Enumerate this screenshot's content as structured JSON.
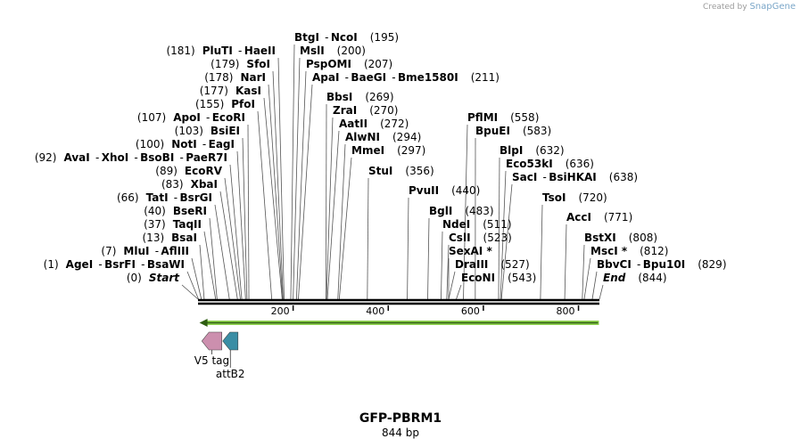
{
  "credit": {
    "prefix": "Created by",
    "brand": "SnapGene"
  },
  "map": {
    "title": "GFP-PBRM1",
    "size_label": "844 bp",
    "length": 844,
    "ticks": [
      {
        "label": "200",
        "value": 200
      },
      {
        "label": "400",
        "value": 400
      },
      {
        "label": "600",
        "value": 600
      },
      {
        "label": "800",
        "value": 800
      }
    ]
  },
  "left_labels": [
    {
      "names": [
        "Start"
      ],
      "pos": "(0)",
      "pos_bp": 0,
      "italic": true
    },
    {
      "names": [
        "AgeI",
        "BsrFI",
        "BsaWI"
      ],
      "pos": "(1)",
      "pos_bp": 1
    },
    {
      "names": [
        "MluI",
        "AflIII"
      ],
      "pos": "(7)",
      "pos_bp": 7
    },
    {
      "names": [
        "BsaI"
      ],
      "pos": "(13)",
      "pos_bp": 13
    },
    {
      "names": [
        "TaqII"
      ],
      "pos": "(37)",
      "pos_bp": 37
    },
    {
      "names": [
        "BseRI"
      ],
      "pos": "(40)",
      "pos_bp": 40
    },
    {
      "names": [
        "TatI",
        "BsrGI"
      ],
      "pos": "(66)",
      "pos_bp": 66
    },
    {
      "names": [
        "XbaI"
      ],
      "pos": "(83)",
      "pos_bp": 83
    },
    {
      "names": [
        "EcoRV"
      ],
      "pos": "(89)",
      "pos_bp": 89
    },
    {
      "names": [
        "AvaI",
        "XhoI",
        "BsoBI",
        "PaeR7I"
      ],
      "pos": "(92)",
      "pos_bp": 92
    },
    {
      "names": [
        "NotI",
        "EagI"
      ],
      "pos": "(100)",
      "pos_bp": 100
    },
    {
      "names": [
        "BsiEI"
      ],
      "pos": "(103)",
      "pos_bp": 103
    },
    {
      "names": [
        "ApoI",
        "EcoRI"
      ],
      "pos": "(107)",
      "pos_bp": 107
    },
    {
      "names": [
        "PfoI"
      ],
      "pos": "(155)",
      "pos_bp": 155
    },
    {
      "names": [
        "KasI"
      ],
      "pos": "(177)",
      "pos_bp": 177
    },
    {
      "names": [
        "NarI"
      ],
      "pos": "(178)",
      "pos_bp": 178
    },
    {
      "names": [
        "SfoI"
      ],
      "pos": "(179)",
      "pos_bp": 179
    },
    {
      "names": [
        "PluTI",
        "HaeII"
      ],
      "pos": "(181)",
      "pos_bp": 181
    }
  ],
  "right_labels": [
    {
      "names": [
        "BtgI",
        "NcoI"
      ],
      "pos": "(195)",
      "pos_bp": 195
    },
    {
      "names": [
        "MslI"
      ],
      "pos": "(200)",
      "pos_bp": 200
    },
    {
      "names": [
        "PspOMI"
      ],
      "pos": "(207)",
      "pos_bp": 207
    },
    {
      "names": [
        "ApaI",
        "BaeGI",
        "Bme1580I"
      ],
      "pos": "(211)",
      "pos_bp": 211
    },
    {
      "names": [
        "BbsI"
      ],
      "pos": "(269)",
      "pos_bp": 269
    },
    {
      "names": [
        "ZraI"
      ],
      "pos": "(270)",
      "pos_bp": 270
    },
    {
      "names": [
        "AatII"
      ],
      "pos": "(272)",
      "pos_bp": 272
    },
    {
      "names": [
        "AlwNI"
      ],
      "pos": "(294)",
      "pos_bp": 294
    },
    {
      "names": [
        "MmeI"
      ],
      "pos": "(297)",
      "pos_bp": 297
    },
    {
      "names": [
        "StuI"
      ],
      "pos": "(356)",
      "pos_bp": 356
    },
    {
      "names": [
        "PvuII"
      ],
      "pos": "(440)",
      "pos_bp": 440
    },
    {
      "names": [
        "BglI"
      ],
      "pos": "(483)",
      "pos_bp": 483
    },
    {
      "names": [
        "NdeI"
      ],
      "pos": "(511)",
      "pos_bp": 511
    },
    {
      "names": [
        "CslI"
      ],
      "pos": "(523)",
      "pos_bp": 523
    },
    {
      "names": [
        "SexAI *"
      ],
      "pos": "",
      "pos_bp": 527
    },
    {
      "names": [
        "DraIII"
      ],
      "pos": "(527)",
      "pos_bp": 527
    },
    {
      "names": [
        "EcoNI"
      ],
      "pos": "(543)",
      "pos_bp": 543
    },
    {
      "names": [
        "PflMI"
      ],
      "pos": "(558)",
      "pos_bp": 558
    },
    {
      "names": [
        "BpuEI"
      ],
      "pos": "(583)",
      "pos_bp": 583
    },
    {
      "names": [
        "BlpI"
      ],
      "pos": "(632)",
      "pos_bp": 632
    },
    {
      "names": [
        "Eco53kI"
      ],
      "pos": "(636)",
      "pos_bp": 636
    },
    {
      "names": [
        "SacI",
        "BsiHKAI"
      ],
      "pos": "(638)",
      "pos_bp": 638
    },
    {
      "names": [
        "TsoI"
      ],
      "pos": "(720)",
      "pos_bp": 720
    },
    {
      "names": [
        "AccI"
      ],
      "pos": "(771)",
      "pos_bp": 771
    },
    {
      "names": [
        "BstXI"
      ],
      "pos": "(808)",
      "pos_bp": 808
    },
    {
      "names": [
        "MscI *"
      ],
      "pos": "(812)",
      "pos_bp": 812
    },
    {
      "names": [
        "BbvCI",
        "Bpu10I"
      ],
      "pos": "(829)",
      "pos_bp": 829
    },
    {
      "names": [
        "End"
      ],
      "pos": "(844)",
      "pos_bp": 844,
      "italic": true
    }
  ],
  "features": [
    {
      "name": "V5 tag",
      "start_bp": 8,
      "end_bp": 50,
      "color": "#cc8fae",
      "direction": "reverse"
    },
    {
      "name": "attB2",
      "start_bp": 52,
      "end_bp": 84,
      "color": "#3b8ea5",
      "direction": "reverse"
    }
  ],
  "orf": {
    "start_bp": 3,
    "end_bp": 843,
    "color": "#8fd14f",
    "direction": "reverse"
  }
}
